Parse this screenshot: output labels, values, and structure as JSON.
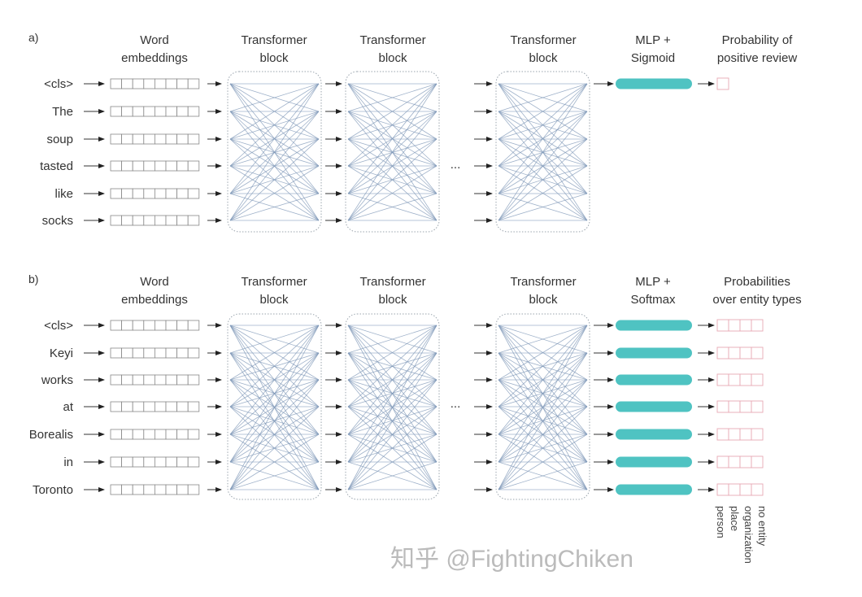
{
  "colors": {
    "mlp": "#4fc3c2",
    "output_box": "#e8a8b4",
    "line": "#7f98b8",
    "block_border": "#9aa4ad"
  },
  "panel_a": {
    "label": "a)",
    "headers": {
      "embeddings": [
        "Word",
        "embeddings"
      ],
      "block": [
        "Transformer",
        "block"
      ],
      "mlp": [
        "MLP +",
        "Sigmoid"
      ],
      "output": [
        "Probability of",
        "positive review"
      ]
    },
    "tokens": [
      "<cls>",
      "The",
      "soup",
      "tasted",
      "like",
      "socks"
    ],
    "ellipsis": "..."
  },
  "panel_b": {
    "label": "b)",
    "headers": {
      "embeddings": [
        "Word",
        "embeddings"
      ],
      "block": [
        "Transformer",
        "block"
      ],
      "mlp": [
        "MLP +",
        "Softmax"
      ],
      "output": [
        "Probabilities",
        "over entity types"
      ]
    },
    "tokens": [
      "<cls>",
      "Keyi",
      "works",
      "at",
      "Borealis",
      "in",
      "Toronto"
    ],
    "entity_types": [
      "person",
      "place",
      "organization",
      "no entity"
    ],
    "ellipsis": "..."
  },
  "watermark": "知乎 @FightingChiken"
}
